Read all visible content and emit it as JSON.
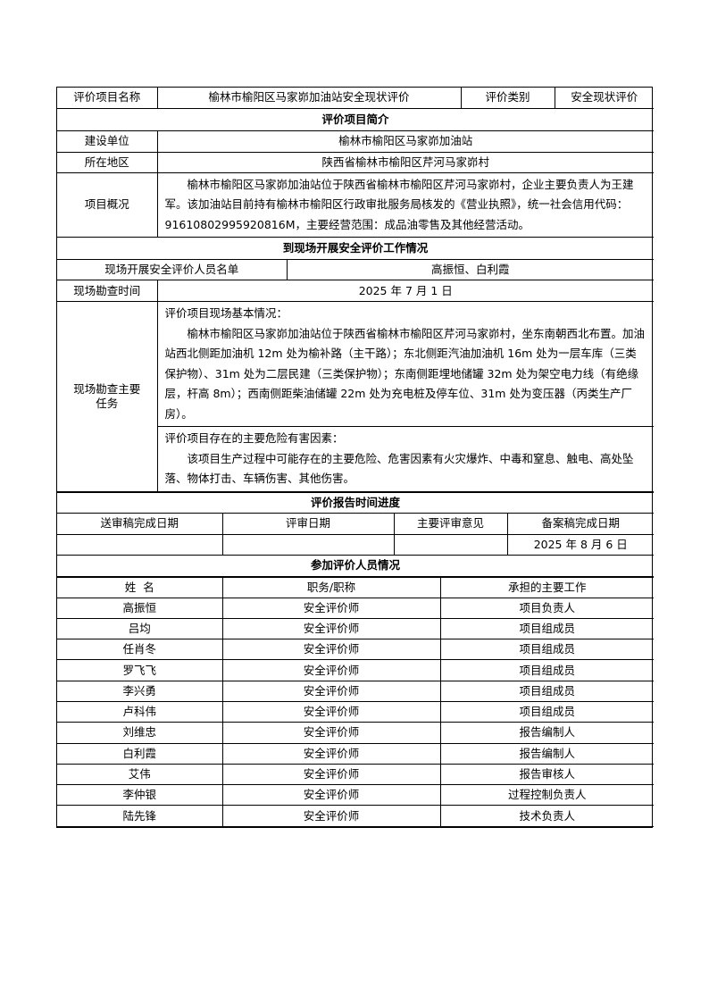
{
  "header": {
    "name_label": "评价项目名称",
    "name_value": "榆林市榆阳区马家峁加油站安全现状评价",
    "type_label": "评价类别",
    "type_value": "安全现状评价"
  },
  "intro": {
    "title": "评价项目简介",
    "unit_label": "建设单位",
    "unit_value": "榆林市榆阳区马家峁加油站",
    "area_label": "所在地区",
    "area_value": "陕西省榆林市榆阳区芹河马家峁村",
    "overview_label": "项目概况",
    "overview_text": "榆林市榆阳区马家峁加油站位于陕西省榆林市榆阳区芹河马家峁村，企业主要负责人为王建军。该加油站目前持有榆林市榆阳区行政审批服务局核发的《营业执照》，统一社会信用代码：91610802995920816M，主要经营范围：成品油零售及其他经营活动。"
  },
  "site": {
    "title": "到现场开展安全评价工作情况",
    "staff_label": "现场开展安全评价人员名单",
    "staff_value": "高振恒、白利霞",
    "time_label": "现场勘查时间",
    "time_value": "2025 年 7 月 1 日",
    "task_label": "现场勘查主要任务",
    "basic_heading": "评价项目现场基本情况：",
    "basic_text": "榆林市榆阳区马家峁加油站位于陕西省榆林市榆阳区芹河马家峁村，坐东南朝西北布置。加油站西北侧距加油机 12m 处为榆补路（主干路）；东北侧距汽油加油机 16m 处为一层车库（三类保护物）、31m 处为二层民建（三类保护物）；东南侧距埋地储罐 32m 处为架空电力线（有绝缘层，杆高 8m）；西南侧距柴油储罐 22m 处为充电桩及停车位、31m 处为变压器（丙类生产厂房）。",
    "hazard_heading": "评价项目存在的主要危险有害因素：",
    "hazard_text": "该项目生产过程中可能存在的主要危险、危害因素有火灾爆炸、中毒和窒息、触电、高处坠落、物体打击、车辆伤害、其他伤害。"
  },
  "schedule": {
    "title": "评价报告时间进度",
    "columns": [
      "送审稿完成日期",
      "评审日期",
      "主要评审意见",
      "备案稿完成日期"
    ],
    "values": [
      "",
      "",
      "",
      "2025 年 8 月 6 日"
    ]
  },
  "personnel": {
    "title": "参加评价人员情况",
    "columns": [
      "姓  名",
      "职务/职称",
      "承担的主要工作"
    ],
    "rows": [
      [
        "高振恒",
        "安全评价师",
        "项目负责人"
      ],
      [
        "吕均",
        "安全评价师",
        "项目组成员"
      ],
      [
        "任肖冬",
        "安全评价师",
        "项目组成员"
      ],
      [
        "罗飞飞",
        "安全评价师",
        "项目组成员"
      ],
      [
        "李兴勇",
        "安全评价师",
        "项目组成员"
      ],
      [
        "卢科伟",
        "安全评价师",
        "项目组成员"
      ],
      [
        "刘维忠",
        "安全评价师",
        "报告编制人"
      ],
      [
        "白利霞",
        "安全评价师",
        "报告编制人"
      ],
      [
        "艾伟",
        "安全评价师",
        "报告审核人"
      ],
      [
        "李仲银",
        "安全评价师",
        "过程控制负责人"
      ],
      [
        "陆先锋",
        "安全评价师",
        "技术负责人"
      ]
    ]
  }
}
